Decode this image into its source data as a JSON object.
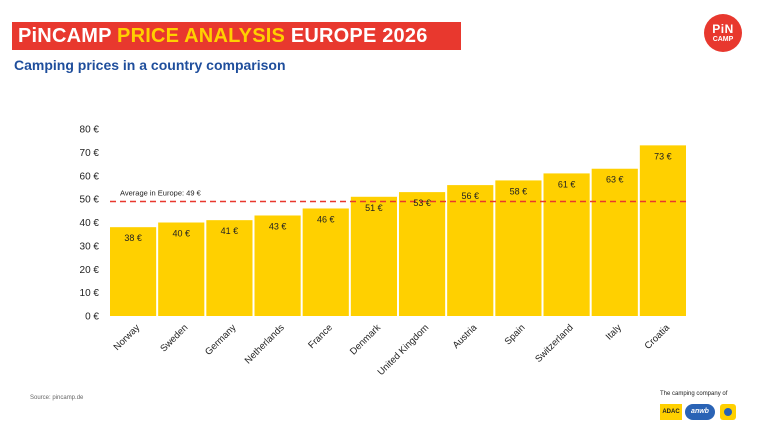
{
  "header": {
    "title_part1": "PiNCAMP ",
    "title_part2": "PRICE ANALYSIS",
    "title_part3": " EUROPE 2026",
    "subtitle": "Camping prices in a country comparison"
  },
  "logo": {
    "line1": "PiN",
    "line2": "CAMP"
  },
  "chart_data": {
    "type": "bar",
    "categories": [
      "Norway",
      "Sweden",
      "Germany",
      "Netherlands",
      "France",
      "Denmark",
      "United Kingdom",
      "Austria",
      "Spain",
      "Switzerland",
      "Italy",
      "Croatia"
    ],
    "values": [
      38,
      40,
      41,
      43,
      46,
      51,
      53,
      56,
      58,
      61,
      63,
      73
    ],
    "data_labels": [
      "38 €",
      "40 €",
      "41 €",
      "43 €",
      "46 €",
      "51 €",
      "53 €",
      "56 €",
      "58 €",
      "61 €",
      "63 €",
      "73 €"
    ],
    "yticks": [
      0,
      10,
      20,
      30,
      40,
      50,
      60,
      70,
      80
    ],
    "ytick_labels": [
      "0 €",
      "10 €",
      "20 €",
      "30 €",
      "40 €",
      "50 €",
      "60 €",
      "70 €",
      "80 €"
    ],
    "ylim": [
      0,
      80
    ],
    "reference_line": {
      "value": 49,
      "label": "Average in Europe: 49 €"
    },
    "grid": false,
    "colors": {
      "bar": "#ffd000",
      "reference_line": "#e8382e",
      "title_banner": "#e8382e",
      "title_highlight": "#ffd000",
      "subtitle": "#1f4e9c"
    }
  },
  "footer": {
    "source": "Source: pincamp.de",
    "tagline": "The camping company of",
    "partners": [
      "ADAC",
      "anwb"
    ]
  }
}
